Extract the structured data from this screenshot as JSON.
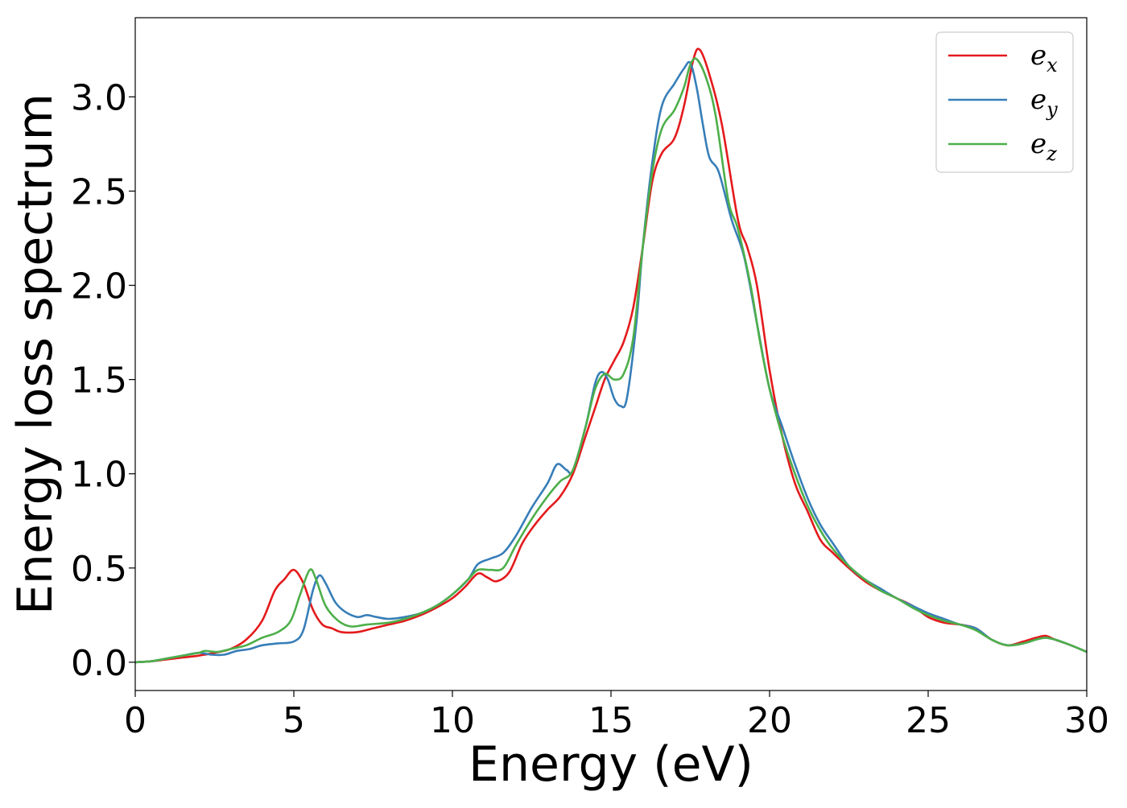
{
  "chart_data": {
    "type": "line",
    "title": "",
    "xlabel": "Energy (eV)",
    "ylabel": "Energy loss spectrum",
    "xlim": [
      0,
      30
    ],
    "ylim": [
      -0.15,
      3.42
    ],
    "xticks": [
      0,
      5,
      10,
      15,
      20,
      25,
      30
    ],
    "xtick_labels": [
      "0",
      "5",
      "10",
      "15",
      "20",
      "25",
      "30"
    ],
    "yticks": [
      0.0,
      0.5,
      1.0,
      1.5,
      2.0,
      2.5,
      3.0
    ],
    "ytick_labels": [
      "0.0",
      "0.5",
      "1.0",
      "1.5",
      "2.0",
      "2.5",
      "3.0"
    ],
    "grid": false,
    "legend_position": "top-right",
    "series": [
      {
        "name": "e_x",
        "label_base": "e",
        "label_sub": "x",
        "color": "#e41a1c",
        "points": [
          [
            0,
            0
          ],
          [
            0.5,
            0.005
          ],
          [
            1,
            0.015
          ],
          [
            1.5,
            0.025
          ],
          [
            2,
            0.035
          ],
          [
            2.5,
            0.05
          ],
          [
            3,
            0.07
          ],
          [
            3.5,
            0.12
          ],
          [
            4,
            0.22
          ],
          [
            4.4,
            0.38
          ],
          [
            4.7,
            0.44
          ],
          [
            5,
            0.49
          ],
          [
            5.3,
            0.42
          ],
          [
            5.6,
            0.28
          ],
          [
            5.9,
            0.2
          ],
          [
            6.2,
            0.18
          ],
          [
            6.5,
            0.16
          ],
          [
            7,
            0.16
          ],
          [
            7.5,
            0.18
          ],
          [
            8,
            0.2
          ],
          [
            8.5,
            0.22
          ],
          [
            9,
            0.25
          ],
          [
            9.5,
            0.29
          ],
          [
            10,
            0.34
          ],
          [
            10.4,
            0.4
          ],
          [
            10.8,
            0.47
          ],
          [
            11.1,
            0.45
          ],
          [
            11.4,
            0.43
          ],
          [
            11.8,
            0.48
          ],
          [
            12.2,
            0.63
          ],
          [
            12.6,
            0.73
          ],
          [
            13,
            0.81
          ],
          [
            13.4,
            0.88
          ],
          [
            13.8,
            1.0
          ],
          [
            14.2,
            1.2
          ],
          [
            14.5,
            1.35
          ],
          [
            14.8,
            1.5
          ],
          [
            15.1,
            1.6
          ],
          [
            15.4,
            1.7
          ],
          [
            15.7,
            1.88
          ],
          [
            16,
            2.2
          ],
          [
            16.3,
            2.55
          ],
          [
            16.6,
            2.7
          ],
          [
            17,
            2.78
          ],
          [
            17.3,
            2.95
          ],
          [
            17.6,
            3.2
          ],
          [
            17.8,
            3.25
          ],
          [
            18.1,
            3.12
          ],
          [
            18.5,
            2.85
          ],
          [
            19,
            2.35
          ],
          [
            19.3,
            2.2
          ],
          [
            19.6,
            2.0
          ],
          [
            20,
            1.55
          ],
          [
            20.4,
            1.2
          ],
          [
            20.8,
            0.95
          ],
          [
            21.2,
            0.8
          ],
          [
            21.6,
            0.65
          ],
          [
            22,
            0.58
          ],
          [
            22.5,
            0.5
          ],
          [
            23,
            0.43
          ],
          [
            23.5,
            0.38
          ],
          [
            24,
            0.34
          ],
          [
            24.5,
            0.3
          ],
          [
            25,
            0.24
          ],
          [
            25.5,
            0.21
          ],
          [
            26,
            0.2
          ],
          [
            26.5,
            0.18
          ],
          [
            27,
            0.12
          ],
          [
            27.5,
            0.09
          ],
          [
            28,
            0.11
          ],
          [
            28.4,
            0.13
          ],
          [
            28.7,
            0.14
          ],
          [
            29,
            0.12
          ],
          [
            29.5,
            0.09
          ],
          [
            30,
            0.055
          ]
        ]
      },
      {
        "name": "e_y",
        "label_base": "e",
        "label_sub": "y",
        "color": "#377eb8",
        "points": [
          [
            0,
            0
          ],
          [
            0.5,
            0.005
          ],
          [
            1,
            0.02
          ],
          [
            1.5,
            0.035
          ],
          [
            2,
            0.05
          ],
          [
            2.4,
            0.04
          ],
          [
            2.8,
            0.04
          ],
          [
            3.2,
            0.06
          ],
          [
            3.6,
            0.07
          ],
          [
            4,
            0.09
          ],
          [
            4.5,
            0.1
          ],
          [
            5,
            0.11
          ],
          [
            5.3,
            0.17
          ],
          [
            5.6,
            0.38
          ],
          [
            5.8,
            0.46
          ],
          [
            6,
            0.42
          ],
          [
            6.3,
            0.32
          ],
          [
            6.6,
            0.27
          ],
          [
            7,
            0.24
          ],
          [
            7.3,
            0.25
          ],
          [
            7.6,
            0.24
          ],
          [
            8,
            0.23
          ],
          [
            8.5,
            0.24
          ],
          [
            9,
            0.26
          ],
          [
            9.5,
            0.3
          ],
          [
            10,
            0.36
          ],
          [
            10.5,
            0.44
          ],
          [
            10.8,
            0.52
          ],
          [
            11.2,
            0.55
          ],
          [
            11.6,
            0.58
          ],
          [
            12,
            0.67
          ],
          [
            12.5,
            0.82
          ],
          [
            13,
            0.95
          ],
          [
            13.3,
            1.05
          ],
          [
            13.6,
            1.02
          ],
          [
            13.8,
            1.02
          ],
          [
            14.2,
            1.25
          ],
          [
            14.5,
            1.48
          ],
          [
            14.7,
            1.54
          ],
          [
            14.9,
            1.5
          ],
          [
            15.1,
            1.4
          ],
          [
            15.3,
            1.36
          ],
          [
            15.5,
            1.4
          ],
          [
            15.8,
            1.8
          ],
          [
            16,
            2.2
          ],
          [
            16.3,
            2.65
          ],
          [
            16.6,
            2.95
          ],
          [
            17,
            3.07
          ],
          [
            17.3,
            3.15
          ],
          [
            17.5,
            3.18
          ],
          [
            17.7,
            3.05
          ],
          [
            17.9,
            2.85
          ],
          [
            18.1,
            2.68
          ],
          [
            18.4,
            2.6
          ],
          [
            18.8,
            2.35
          ],
          [
            19.2,
            2.15
          ],
          [
            19.6,
            1.8
          ],
          [
            20,
            1.45
          ],
          [
            20.4,
            1.25
          ],
          [
            20.8,
            1.05
          ],
          [
            21.2,
            0.87
          ],
          [
            21.6,
            0.73
          ],
          [
            22,
            0.63
          ],
          [
            22.5,
            0.51
          ],
          [
            23,
            0.44
          ],
          [
            23.5,
            0.39
          ],
          [
            24,
            0.34
          ],
          [
            24.5,
            0.3
          ],
          [
            25,
            0.26
          ],
          [
            25.5,
            0.23
          ],
          [
            26,
            0.2
          ],
          [
            26.5,
            0.18
          ],
          [
            27,
            0.12
          ],
          [
            27.5,
            0.09
          ],
          [
            28,
            0.1
          ],
          [
            28.4,
            0.12
          ],
          [
            28.7,
            0.13
          ],
          [
            29,
            0.12
          ],
          [
            29.5,
            0.09
          ],
          [
            30,
            0.055
          ]
        ]
      },
      {
        "name": "e_z",
        "label_base": "e",
        "label_sub": "z",
        "color": "#4daf4a",
        "points": [
          [
            0,
            0
          ],
          [
            0.5,
            0.005
          ],
          [
            1,
            0.02
          ],
          [
            1.5,
            0.035
          ],
          [
            2,
            0.05
          ],
          [
            2.2,
            0.06
          ],
          [
            2.6,
            0.055
          ],
          [
            3,
            0.07
          ],
          [
            3.5,
            0.09
          ],
          [
            4,
            0.13
          ],
          [
            4.5,
            0.16
          ],
          [
            4.9,
            0.22
          ],
          [
            5.2,
            0.36
          ],
          [
            5.5,
            0.49
          ],
          [
            5.7,
            0.44
          ],
          [
            6,
            0.3
          ],
          [
            6.4,
            0.22
          ],
          [
            6.8,
            0.19
          ],
          [
            7.3,
            0.2
          ],
          [
            8,
            0.21
          ],
          [
            8.5,
            0.23
          ],
          [
            9,
            0.26
          ],
          [
            9.5,
            0.3
          ],
          [
            10,
            0.36
          ],
          [
            10.5,
            0.44
          ],
          [
            10.8,
            0.49
          ],
          [
            11.2,
            0.49
          ],
          [
            11.6,
            0.5
          ],
          [
            12,
            0.62
          ],
          [
            12.5,
            0.76
          ],
          [
            13,
            0.88
          ],
          [
            13.4,
            0.96
          ],
          [
            13.8,
            1.02
          ],
          [
            14.2,
            1.25
          ],
          [
            14.5,
            1.45
          ],
          [
            14.8,
            1.53
          ],
          [
            15.1,
            1.5
          ],
          [
            15.4,
            1.53
          ],
          [
            15.7,
            1.72
          ],
          [
            16,
            2.2
          ],
          [
            16.3,
            2.6
          ],
          [
            16.6,
            2.83
          ],
          [
            17,
            2.93
          ],
          [
            17.3,
            3.05
          ],
          [
            17.5,
            3.17
          ],
          [
            17.7,
            3.2
          ],
          [
            18,
            3.1
          ],
          [
            18.3,
            2.9
          ],
          [
            18.7,
            2.45
          ],
          [
            19,
            2.3
          ],
          [
            19.4,
            2.0
          ],
          [
            19.7,
            1.7
          ],
          [
            20,
            1.45
          ],
          [
            20.4,
            1.2
          ],
          [
            20.8,
            1.0
          ],
          [
            21.2,
            0.83
          ],
          [
            21.6,
            0.7
          ],
          [
            22,
            0.6
          ],
          [
            22.5,
            0.51
          ],
          [
            23,
            0.44
          ],
          [
            23.5,
            0.38
          ],
          [
            24,
            0.34
          ],
          [
            24.5,
            0.29
          ],
          [
            25,
            0.25
          ],
          [
            25.5,
            0.22
          ],
          [
            26,
            0.2
          ],
          [
            26.5,
            0.17
          ],
          [
            27,
            0.12
          ],
          [
            27.5,
            0.09
          ],
          [
            28,
            0.1
          ],
          [
            28.4,
            0.12
          ],
          [
            28.7,
            0.13
          ],
          [
            29,
            0.12
          ],
          [
            29.5,
            0.09
          ],
          [
            30,
            0.055
          ]
        ]
      }
    ]
  }
}
